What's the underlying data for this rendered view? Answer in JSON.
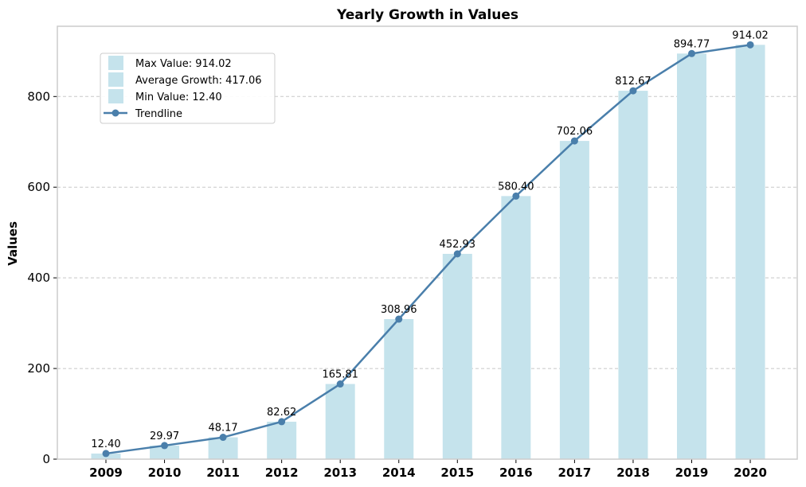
{
  "chart_data": {
    "type": "bar",
    "title": "Yearly Growth in Values",
    "xlabel": "",
    "ylabel": "Values",
    "categories": [
      "2009",
      "2010",
      "2011",
      "2012",
      "2013",
      "2014",
      "2015",
      "2016",
      "2017",
      "2018",
      "2019",
      "2020"
    ],
    "values": [
      12.4,
      29.97,
      48.17,
      82.62,
      165.81,
      308.96,
      452.93,
      580.4,
      702.06,
      812.67,
      894.77,
      914.02
    ],
    "data_labels": [
      "12.40",
      "29.97",
      "48.17",
      "82.62",
      "165.81",
      "308.96",
      "452.93",
      "580.40",
      "702.06",
      "812.67",
      "894.77",
      "914.02"
    ],
    "series": [
      {
        "name": "Trendline",
        "type": "line",
        "values": [
          12.4,
          29.97,
          48.17,
          82.62,
          165.81,
          308.96,
          452.93,
          580.4,
          702.06,
          812.67,
          894.77,
          914.02
        ]
      }
    ],
    "ylim": [
      0,
      955
    ],
    "yticks": [
      0,
      200,
      400,
      600,
      800
    ],
    "ytick_labels": [
      "0",
      "200",
      "400",
      "600",
      "800"
    ],
    "grid": "y-dashed",
    "legend": {
      "placement": "top-left",
      "entries": [
        "Max Value: 914.02",
        "Average Growth: 417.06",
        "Min Value: 12.40",
        "Trendline"
      ]
    },
    "colors": {
      "bar": "#c5e3ec",
      "line": "#4a7fab",
      "grid": "#c8c8c8",
      "frame": "#cccccc"
    }
  }
}
